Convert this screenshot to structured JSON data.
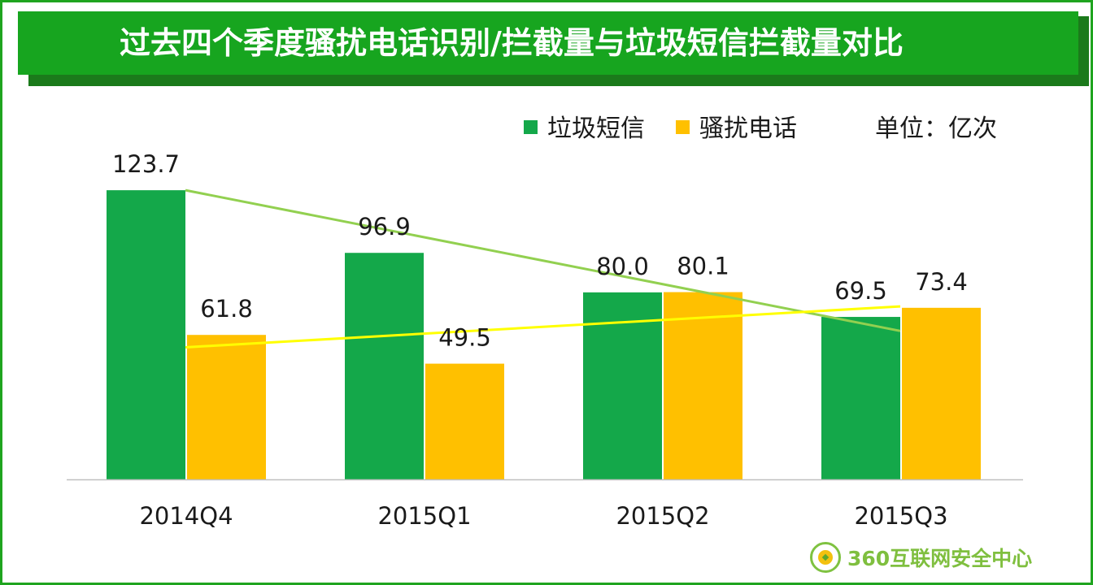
{
  "colors": {
    "frame": "#1fa41f",
    "title_bg": "#17a51f",
    "title_shadow": "#1b7a1b",
    "spam_sms": "#14a84a",
    "harass_call": "#ffc000",
    "spam_trend": "#92d050",
    "call_trend": "#ffff00",
    "axis": "#bfbfbf",
    "logo": "#7fbf3f"
  },
  "title": "过去四个季度骚扰电话识别/拦截量与垃圾短信拦截量对比",
  "unit_label": "单位：亿次",
  "logo_text": "360互联网安全中心",
  "chart_data": {
    "type": "bar",
    "title": "过去四个季度骚扰电话识别/拦截量与垃圾短信拦截量对比",
    "xlabel": "",
    "ylabel": "亿次",
    "ylim": [
      0,
      130
    ],
    "grid": false,
    "legend_position": "top-right",
    "categories": [
      "2014Q4",
      "2015Q1",
      "2015Q2",
      "2015Q3"
    ],
    "series": [
      {
        "name": "垃圾短信",
        "color": "#14a84a",
        "values": [
          123.7,
          96.9,
          80.0,
          69.5
        ],
        "labels": [
          "123.7",
          "96.9",
          "80.0",
          "69.5"
        ]
      },
      {
        "name": "骚扰电话",
        "color": "#ffc000",
        "values": [
          61.8,
          49.5,
          80.1,
          73.4
        ],
        "labels": [
          "61.8",
          "49.5",
          "80.1",
          "73.4"
        ]
      }
    ],
    "trendlines": [
      {
        "series": "垃圾短信",
        "color": "#92d050",
        "from": [
          0,
          123.7
        ],
        "to": [
          3,
          63.5
        ]
      },
      {
        "series": "骚扰电话",
        "color": "#ffff00",
        "from": [
          0,
          56.5
        ],
        "to": [
          3,
          74.0
        ]
      }
    ]
  }
}
